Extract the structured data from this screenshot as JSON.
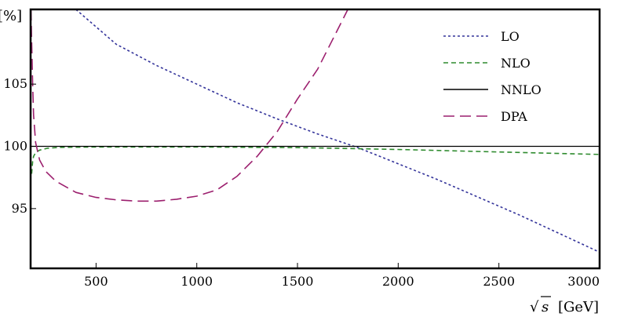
{
  "chart_data": {
    "type": "line",
    "title": "",
    "xlabel_root": "√",
    "xlabel_var": "s",
    "xlabel_unit": "[GeV]",
    "ylabel": "[%]",
    "xlim": [
      175,
      3000
    ],
    "ylim": [
      90.2,
      111
    ],
    "xticks": [
      500,
      1000,
      1500,
      2000,
      2500,
      3000
    ],
    "yticks": [
      95,
      100,
      105
    ],
    "grid": false,
    "legend_position": "top-right",
    "series": [
      {
        "name": "LO",
        "color": "#33339a",
        "dash": "3,3",
        "x": [
          400,
          600,
          800,
          1000,
          1200,
          1400,
          1600,
          1800,
          2000,
          2200,
          2400,
          2600,
          2800,
          3000
        ],
        "y": [
          111,
          108.2,
          106.5,
          105.0,
          103.5,
          102.2,
          101.0,
          99.9,
          98.6,
          97.3,
          95.9,
          94.5,
          93.0,
          91.5
        ]
      },
      {
        "name": "NLO",
        "color": "#2e8b2e",
        "dash": "6,4",
        "x": [
          180,
          185,
          190,
          200,
          220,
          260,
          320,
          500,
          1000,
          1500,
          2000,
          2500,
          3000
        ],
        "y": [
          97.8,
          98.8,
          99.2,
          99.5,
          99.7,
          99.85,
          99.92,
          99.95,
          99.95,
          99.9,
          99.75,
          99.55,
          99.35
        ]
      },
      {
        "name": "NNLO",
        "color": "#000000",
        "dash": "",
        "x": [
          176,
          500,
          1000,
          1500,
          2000,
          2500,
          3000
        ],
        "y": [
          100.0,
          100.0,
          100.0,
          100.0,
          100.0,
          100.0,
          100.0
        ]
      },
      {
        "name": "DPA",
        "color": "#9c1f6e",
        "dash": "14,7",
        "x": [
          177,
          180,
          185,
          190,
          200,
          220,
          250,
          300,
          400,
          500,
          600,
          700,
          800,
          900,
          1000,
          1100,
          1200,
          1300,
          1400,
          1500,
          1600,
          1700,
          1750
        ],
        "y": [
          111,
          108.5,
          105.0,
          102.5,
          100.3,
          98.9,
          98.0,
          97.2,
          96.3,
          95.9,
          95.7,
          95.6,
          95.6,
          95.75,
          96.0,
          96.5,
          97.6,
          99.2,
          101.2,
          103.8,
          106.2,
          109.4,
          111
        ]
      }
    ]
  }
}
